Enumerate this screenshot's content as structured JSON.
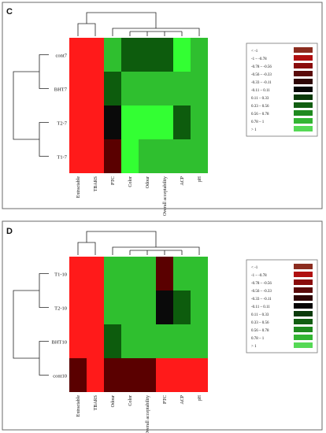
{
  "colors": {
    "red": "#ff1a1a",
    "bright_green": "#33ff33",
    "green": "#2fbf2f",
    "dark_green": "#0d5c0d",
    "black": "#0a0a0a",
    "dark_red": "#5a0000"
  },
  "chart_data": [
    {
      "type": "heatmap",
      "panel": "C",
      "rows": [
        "cont7",
        "BHT7",
        "T2-7",
        "T1-7"
      ],
      "columns": [
        "Extractable",
        "TBARS",
        "PTC",
        "Color",
        "Odour",
        "Overall acceptability",
        "ACP",
        "pH"
      ],
      "values": [
        [
          1.1,
          1.1,
          0.35,
          0.2,
          0.25,
          0.3,
          0.85,
          0.65
        ],
        [
          1.1,
          1.1,
          0.2,
          0.45,
          0.45,
          0.5,
          0.4,
          0.6
        ],
        [
          1.1,
          1.1,
          -0.3,
          0.85,
          0.9,
          0.8,
          0.25,
          0.4
        ],
        [
          1.1,
          1.1,
          -0.6,
          0.9,
          0.6,
          0.6,
          0.6,
          0.6
        ]
      ],
      "row_dendrogram": true,
      "column_dendrogram": true,
      "legend": {
        "entries": [
          "< -1",
          "-1 – -0.78",
          "-0.78 – -0.56",
          "-0.56 – -0.33",
          "-0.33 – -0.11",
          "-0.11 – 0.11",
          "0.11 – 0.33",
          "0.33 – 0.56",
          "0.56 – 0.78",
          "0.78 – 1",
          "> 1"
        ],
        "colors": [
          "#8b2c1f",
          "#b01010",
          "#8a0c0c",
          "#5a0a0a",
          "#2e0606",
          "#060606",
          "#0a3a0a",
          "#125e12",
          "#1f8a1f",
          "#33b533",
          "#55d955"
        ],
        "placement": "right"
      }
    },
    {
      "type": "heatmap",
      "panel": "D",
      "rows": [
        "T1-10",
        "T2-10",
        "BHT10",
        "cont10"
      ],
      "columns": [
        "Extractable",
        "TBARS",
        "Odour",
        "Color",
        "Overall acceptability",
        "PTC",
        "ACP",
        "pH"
      ],
      "values": [
        [
          1.1,
          1.1,
          0.35,
          0.6,
          0.55,
          -0.6,
          0.55,
          0.55
        ],
        [
          1.1,
          1.1,
          0.55,
          0.7,
          0.65,
          -0.55,
          0.3,
          0.5
        ],
        [
          1.1,
          1.1,
          0.3,
          0.4,
          0.4,
          0.5,
          0.55,
          0.55
        ],
        [
          -0.7,
          1.1,
          -0.6,
          -0.9,
          -0.9,
          1.1,
          1.1,
          1.1
        ]
      ],
      "row_dendrogram": true,
      "column_dendrogram": true,
      "legend": {
        "entries": [
          "< -1",
          "-1 – -0.78",
          "-0.78 – -0.56",
          "-0.56 – -0.33",
          "-0.33 – -0.11",
          "-0.11 – 0.11",
          "0.11 – 0.33",
          "0.33 – 0.56",
          "0.56 – 0.78",
          "0.78 – 1",
          "> 1"
        ],
        "colors": [
          "#8b2c1f",
          "#b01010",
          "#8a0c0c",
          "#5a0a0a",
          "#2e0606",
          "#060606",
          "#0a3a0a",
          "#125e12",
          "#1f8a1f",
          "#33b533",
          "#55d955"
        ],
        "placement": "right"
      }
    }
  ]
}
